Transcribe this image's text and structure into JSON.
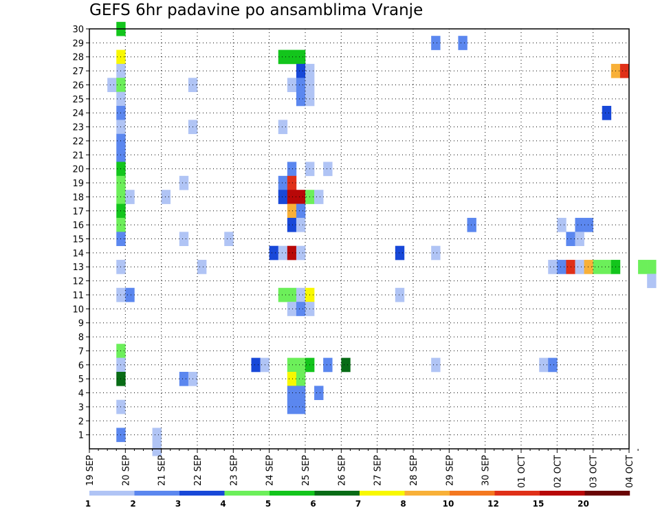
{
  "chart_data": {
    "type": "heatmap",
    "title": "GEFS 6hr padavine po ansamblima Vranje",
    "x_tick_labels": [
      "19 SEP",
      "20 SEP",
      "21 SEP",
      "22 SEP",
      "23 SEP",
      "24 SEP",
      "25 SEP",
      "26 SEP",
      "27 SEP",
      "28 SEP",
      "29 SEP",
      "30 SEP",
      "01 OCT",
      "02 OCT",
      "03 OCT",
      "04 OCT"
    ],
    "y_tick_labels": [
      "1",
      "2",
      "3",
      "4",
      "5",
      "6",
      "7",
      "8",
      "9",
      "10",
      "11",
      "12",
      "13",
      "14",
      "15",
      "16",
      "17",
      "18",
      "19",
      "20",
      "21",
      "22",
      "23",
      "24",
      "25",
      "26",
      "27",
      "28",
      "29",
      "30"
    ],
    "x_unit": "days since 19 SEP",
    "x_step_days": 0.25,
    "xlim": [
      0,
      15
    ],
    "ylim": [
      0,
      30
    ],
    "grid": true,
    "levels": [
      1,
      2,
      3,
      4,
      5,
      6,
      7,
      8,
      10,
      12,
      15,
      20
    ],
    "colors": [
      "#b0c4f5",
      "#5b87ef",
      "#1848d8",
      "#6cef5a",
      "#13c51c",
      "#086c16",
      "#f8f800",
      "#f8b038",
      "#f47820",
      "#e03018",
      "#b80808",
      "#6a0505"
    ],
    "colorbar_labels": [
      "1",
      "2",
      "3",
      "4",
      "5",
      "6",
      "7",
      "8",
      "10",
      "12",
      "15",
      "20"
    ],
    "cells": [
      [
        0.75,
        30,
        4
      ],
      [
        0.75,
        28,
        6
      ],
      [
        5.25,
        28,
        4
      ],
      [
        5.5,
        28,
        4
      ],
      [
        5.75,
        28,
        4
      ],
      [
        0.75,
        27,
        0
      ],
      [
        5.75,
        27,
        2
      ],
      [
        6,
        27,
        0
      ],
      [
        14.5,
        27,
        7
      ],
      [
        14.75,
        27,
        9
      ],
      [
        0.5,
        26,
        0
      ],
      [
        0.75,
        26,
        3
      ],
      [
        2.75,
        26,
        0
      ],
      [
        5.5,
        26,
        0
      ],
      [
        5.75,
        26,
        1
      ],
      [
        6,
        26,
        0
      ],
      [
        0.75,
        25,
        0
      ],
      [
        5.75,
        25,
        1
      ],
      [
        6,
        25,
        0
      ],
      [
        0.75,
        24,
        1
      ],
      [
        14.25,
        24,
        2
      ],
      [
        0.75,
        23,
        0
      ],
      [
        2.75,
        23,
        0
      ],
      [
        5.25,
        23,
        0
      ],
      [
        0.75,
        22,
        1
      ],
      [
        0.75,
        21,
        1
      ],
      [
        0.75,
        20,
        4
      ],
      [
        5.5,
        20,
        1
      ],
      [
        6,
        20,
        0
      ],
      [
        6.5,
        20,
        0
      ],
      [
        0.75,
        19,
        3
      ],
      [
        2.5,
        19,
        0
      ],
      [
        5.25,
        19,
        1
      ],
      [
        5.5,
        19,
        9
      ],
      [
        0.75,
        18,
        3
      ],
      [
        1,
        18,
        0
      ],
      [
        2,
        18,
        0
      ],
      [
        5.25,
        18,
        2
      ],
      [
        5.5,
        18,
        10
      ],
      [
        5.75,
        18,
        10
      ],
      [
        6,
        18,
        3
      ],
      [
        6.25,
        18,
        0
      ],
      [
        0.75,
        17,
        4
      ],
      [
        5.5,
        17,
        7
      ],
      [
        5.75,
        17,
        1
      ],
      [
        0.75,
        16,
        3
      ],
      [
        5.5,
        16,
        2
      ],
      [
        5.75,
        16,
        0
      ],
      [
        10.5,
        16,
        1
      ],
      [
        13,
        16,
        0
      ],
      [
        13.5,
        16,
        1
      ],
      [
        13.75,
        16,
        1
      ],
      [
        0.75,
        15,
        1
      ],
      [
        2.5,
        15,
        0
      ],
      [
        3.75,
        15,
        0
      ],
      [
        13.25,
        15,
        1
      ],
      [
        13.5,
        15,
        0
      ],
      [
        5,
        14,
        2
      ],
      [
        5.25,
        14,
        0
      ],
      [
        5.5,
        14,
        10
      ],
      [
        5.75,
        14,
        0
      ],
      [
        8.5,
        14,
        2
      ],
      [
        9.5,
        14,
        0
      ],
      [
        0.75,
        13,
        0
      ],
      [
        3,
        13,
        0
      ],
      [
        12.75,
        13,
        0
      ],
      [
        13,
        13,
        1
      ],
      [
        13.25,
        13,
        9
      ],
      [
        13.5,
        13,
        0
      ],
      [
        13.75,
        13,
        7
      ],
      [
        14,
        13,
        3
      ],
      [
        14.25,
        13,
        3
      ],
      [
        14.5,
        13,
        4
      ],
      [
        15.25,
        13,
        3
      ],
      [
        15.5,
        13,
        3
      ],
      [
        15.5,
        12,
        0
      ],
      [
        0.75,
        11,
        0
      ],
      [
        1,
        11,
        1
      ],
      [
        5.25,
        11,
        3
      ],
      [
        5.5,
        11,
        3
      ],
      [
        5.75,
        11,
        0
      ],
      [
        6,
        11,
        6
      ],
      [
        8.5,
        11,
        0
      ],
      [
        5.5,
        10,
        0
      ],
      [
        5.75,
        10,
        1
      ],
      [
        6,
        10,
        0
      ],
      [
        0.75,
        7,
        3
      ],
      [
        0.75,
        6,
        0
      ],
      [
        4.5,
        6,
        2
      ],
      [
        4.75,
        6,
        0
      ],
      [
        5.5,
        6,
        3
      ],
      [
        5.75,
        6,
        3
      ],
      [
        6,
        6,
        4
      ],
      [
        6.5,
        6,
        1
      ],
      [
        7,
        6,
        5
      ],
      [
        9.5,
        6,
        0
      ],
      [
        12.5,
        6,
        0
      ],
      [
        12.75,
        6,
        1
      ],
      [
        0.75,
        5,
        5
      ],
      [
        2.5,
        5,
        1
      ],
      [
        2.75,
        5,
        0
      ],
      [
        5.5,
        5,
        6
      ],
      [
        5.75,
        5,
        3
      ],
      [
        5.5,
        4,
        1
      ],
      [
        5.75,
        4,
        1
      ],
      [
        6.25,
        4,
        1
      ],
      [
        0.75,
        3,
        0
      ],
      [
        5.5,
        3,
        1
      ],
      [
        5.75,
        3,
        1
      ],
      [
        0.75,
        1,
        1
      ],
      [
        1.75,
        1,
        0
      ],
      [
        1.75,
        0,
        0
      ],
      [
        9.5,
        29,
        1
      ],
      [
        10.25,
        29,
        1
      ]
    ]
  }
}
